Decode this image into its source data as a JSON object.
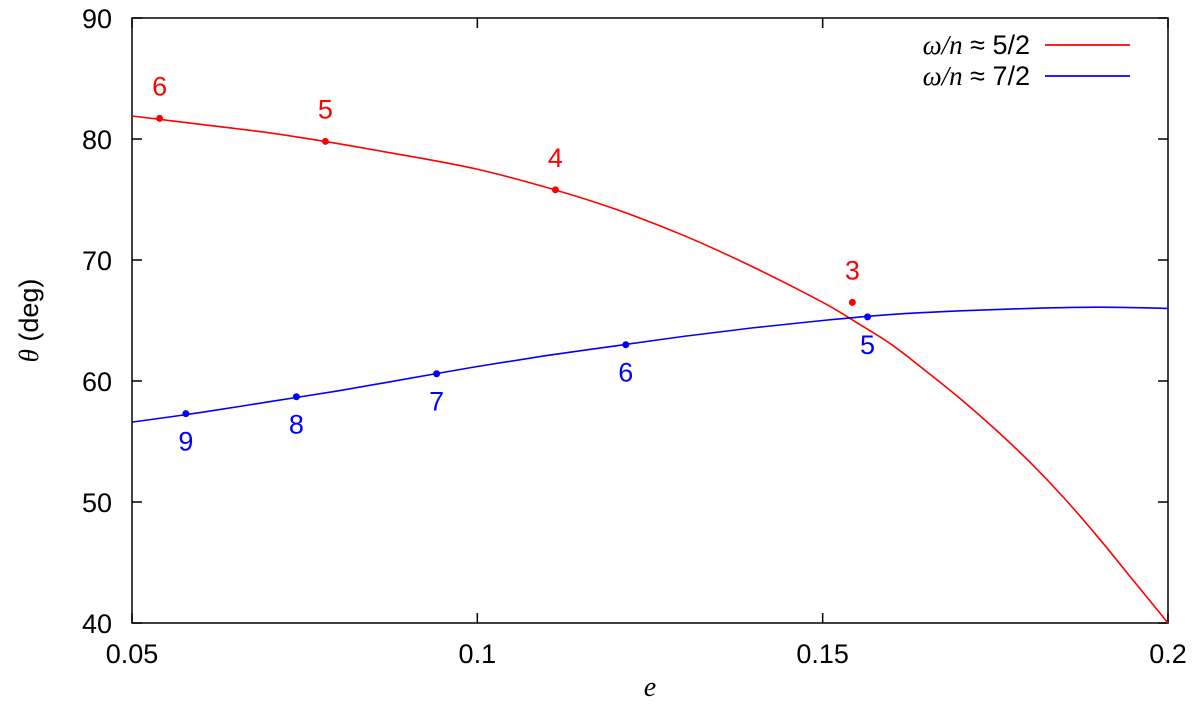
{
  "chart_data": {
    "type": "line",
    "xlabel": "e",
    "ylabel_symbol": "θ",
    "ylabel_unit": "(deg)",
    "xlim": [
      0.05,
      0.2
    ],
    "ylim": [
      40,
      90
    ],
    "x_ticks": [
      0.05,
      0.1,
      0.15,
      0.2
    ],
    "x_tick_labels": [
      "0.05",
      "0.1",
      "0.15",
      "0.2"
    ],
    "y_ticks": [
      40,
      50,
      60,
      70,
      80,
      90
    ],
    "y_tick_labels": [
      "40",
      "50",
      "60",
      "70",
      "80",
      "90"
    ],
    "grid": false,
    "legend_position": "top-right",
    "series": [
      {
        "name": "ω/n ≈ 5/2",
        "name_math": "ω/n",
        "name_rest": " ≈ 5/2",
        "color": "#ff0000",
        "x": [
          0.05,
          0.06,
          0.07,
          0.08,
          0.09,
          0.1,
          0.11,
          0.12,
          0.13,
          0.14,
          0.15,
          0.155,
          0.16,
          0.165,
          0.17,
          0.175,
          0.18,
          0.185,
          0.19,
          0.195,
          0.2
        ],
        "y": [
          81.9,
          81.2,
          80.5,
          79.6,
          78.6,
          77.5,
          76.0,
          74.2,
          72.0,
          69.4,
          66.5,
          64.8,
          63.0,
          60.8,
          58.5,
          56.0,
          53.3,
          50.3,
          47.0,
          43.5,
          40.0
        ],
        "points": [
          {
            "label": "6",
            "x": 0.054,
            "y": 81.7
          },
          {
            "label": "5",
            "x": 0.078,
            "y": 79.8
          },
          {
            "label": "4",
            "x": 0.1113,
            "y": 75.8
          },
          {
            "label": "3",
            "x": 0.1543,
            "y": 66.5
          }
        ]
      },
      {
        "name": "ω/n ≈ 7/2",
        "name_math": "ω/n",
        "name_rest": " ≈ 7/2",
        "color": "#0000ff",
        "x": [
          0.05,
          0.06,
          0.07,
          0.08,
          0.09,
          0.1,
          0.11,
          0.12,
          0.13,
          0.14,
          0.15,
          0.16,
          0.17,
          0.18,
          0.19,
          0.2
        ],
        "y": [
          56.6,
          57.4,
          58.3,
          59.2,
          60.2,
          61.2,
          62.1,
          62.9,
          63.7,
          64.4,
          65.0,
          65.5,
          65.8,
          66.0,
          66.1,
          66.0
        ],
        "points": [
          {
            "label": "9",
            "x": 0.0578,
            "y": 57.3
          },
          {
            "label": "8",
            "x": 0.0738,
            "y": 58.7
          },
          {
            "label": "7",
            "x": 0.0941,
            "y": 60.6
          },
          {
            "label": "6",
            "x": 0.1215,
            "y": 63.0
          },
          {
            "label": "5",
            "x": 0.1565,
            "y": 65.3
          }
        ]
      }
    ]
  }
}
